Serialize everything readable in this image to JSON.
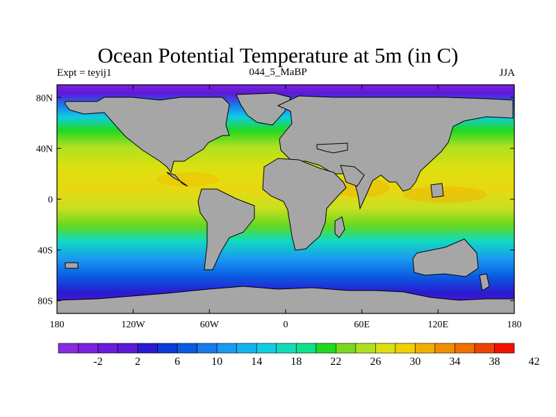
{
  "title": "Ocean Potential Temperature at 5m (in C)",
  "subtitle_left": "Expt = teyij1",
  "subtitle_center": "044_5_MaBP",
  "subtitle_right": "JJA",
  "map": {
    "lon_range": [
      -180,
      180
    ],
    "lat_range": [
      -90,
      90
    ],
    "land_color": "#a6a6a6",
    "x_ticks": [
      {
        "value": -180,
        "label": "180"
      },
      {
        "value": -120,
        "label": "120W"
      },
      {
        "value": -60,
        "label": "60W"
      },
      {
        "value": 0,
        "label": "0"
      },
      {
        "value": 60,
        "label": "60E"
      },
      {
        "value": 120,
        "label": "120E"
      },
      {
        "value": 180,
        "label": "180"
      }
    ],
    "y_ticks": [
      {
        "value": 80,
        "label": "80N"
      },
      {
        "value": 40,
        "label": "40N"
      },
      {
        "value": 0,
        "label": "0"
      },
      {
        "value": -40,
        "label": "40S"
      },
      {
        "value": -80,
        "label": "80S"
      }
    ]
  },
  "colorbar": {
    "colors": [
      "#8a2be2",
      "#7a22dd",
      "#6a1bdb",
      "#5a1ad7",
      "#2a1ad0",
      "#0a3cd8",
      "#0a5ae0",
      "#1a7ae8",
      "#1a9af0",
      "#10b4ec",
      "#10cce4",
      "#10dcbc",
      "#10e08a",
      "#20d820",
      "#7ad820",
      "#aee020",
      "#dce010",
      "#f0d000",
      "#f0b000",
      "#f09000",
      "#f07000",
      "#f04000",
      "#f01000"
    ],
    "labels": [
      "-2",
      "2",
      "6",
      "10",
      "14",
      "18",
      "22",
      "26",
      "30",
      "34",
      "38",
      "42"
    ]
  }
}
